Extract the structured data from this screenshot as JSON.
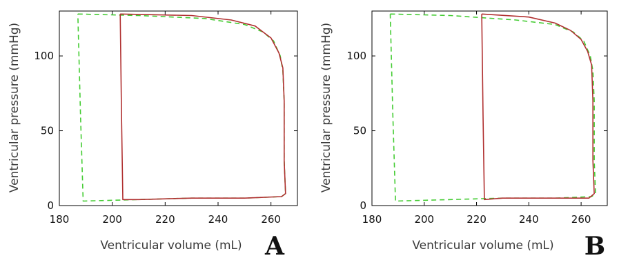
{
  "chart_data": [
    {
      "type": "line",
      "panel_label": "A",
      "xlabel": "Ventricular volume (mL)",
      "ylabel": "Ventricular pressure (mmHg)",
      "xlim": [
        180,
        270
      ],
      "ylim": [
        0,
        130
      ],
      "xticks": [
        180,
        200,
        220,
        240,
        260
      ],
      "yticks": [
        0,
        50,
        100
      ],
      "grid": false,
      "legend": "none",
      "series": [
        {
          "color": "#b03030",
          "style": "solid",
          "points": [
            [
              203,
              128
            ],
            [
              230,
              127
            ],
            [
              245,
              124
            ],
            [
              254,
              120
            ],
            [
              260,
              112
            ],
            [
              263,
              102
            ],
            [
              264.5,
              92
            ],
            [
              265,
              70
            ],
            [
              265,
              30
            ],
            [
              265.5,
              8
            ],
            [
              264,
              6
            ],
            [
              250,
              5
            ],
            [
              230,
              5
            ],
            [
              210,
              4
            ],
            [
              204,
              4
            ],
            [
              203.5,
              60
            ],
            [
              203,
              128
            ]
          ]
        },
        {
          "color": "#44cc33",
          "style": "dashed",
          "points": [
            [
              187,
              128
            ],
            [
              210,
              127
            ],
            [
              235,
              125
            ],
            [
              250,
              121
            ],
            [
              257,
              116
            ],
            [
              261,
              110
            ],
            [
              263.5,
              100
            ],
            [
              264.5,
              90
            ],
            [
              265,
              70
            ],
            [
              265,
              30
            ],
            [
              265.5,
              8
            ],
            [
              264,
              6
            ],
            [
              250,
              5
            ],
            [
              230,
              5
            ],
            [
              210,
              4
            ],
            [
              189,
              3
            ],
            [
              188,
              60
            ],
            [
              187,
              128
            ]
          ]
        }
      ]
    },
    {
      "type": "line",
      "panel_label": "B",
      "xlabel": "Ventricular volume (mL)",
      "ylabel": "Ventricular pressure (mmHg)",
      "xlim": [
        180,
        270
      ],
      "ylim": [
        0,
        130
      ],
      "xticks": [
        180,
        200,
        220,
        240,
        260
      ],
      "yticks": [
        0,
        50,
        100
      ],
      "grid": false,
      "legend": "none",
      "series": [
        {
          "color": "#b03030",
          "style": "solid",
          "points": [
            [
              222,
              128
            ],
            [
              240,
              126
            ],
            [
              250,
              122
            ],
            [
              256,
              117
            ],
            [
              260,
              111
            ],
            [
              262.5,
              103
            ],
            [
              264,
              94
            ],
            [
              264.5,
              70
            ],
            [
              264.5,
              30
            ],
            [
              265,
              8
            ],
            [
              263,
              5
            ],
            [
              245,
              5
            ],
            [
              230,
              5
            ],
            [
              223,
              4
            ],
            [
              222.5,
              60
            ],
            [
              222,
              128
            ]
          ]
        },
        {
          "color": "#44cc33",
          "style": "dashed",
          "points": [
            [
              187,
              128
            ],
            [
              210,
              127
            ],
            [
              235,
              124
            ],
            [
              250,
              121
            ],
            [
              257,
              116
            ],
            [
              261,
              110
            ],
            [
              263.5,
              100
            ],
            [
              264.5,
              90
            ],
            [
              265,
              70
            ],
            [
              265,
              30
            ],
            [
              265.5,
              8
            ],
            [
              264,
              6
            ],
            [
              250,
              5
            ],
            [
              230,
              5
            ],
            [
              210,
              4
            ],
            [
              189,
              3
            ],
            [
              188,
              60
            ],
            [
              187,
              128
            ]
          ]
        }
      ]
    }
  ]
}
